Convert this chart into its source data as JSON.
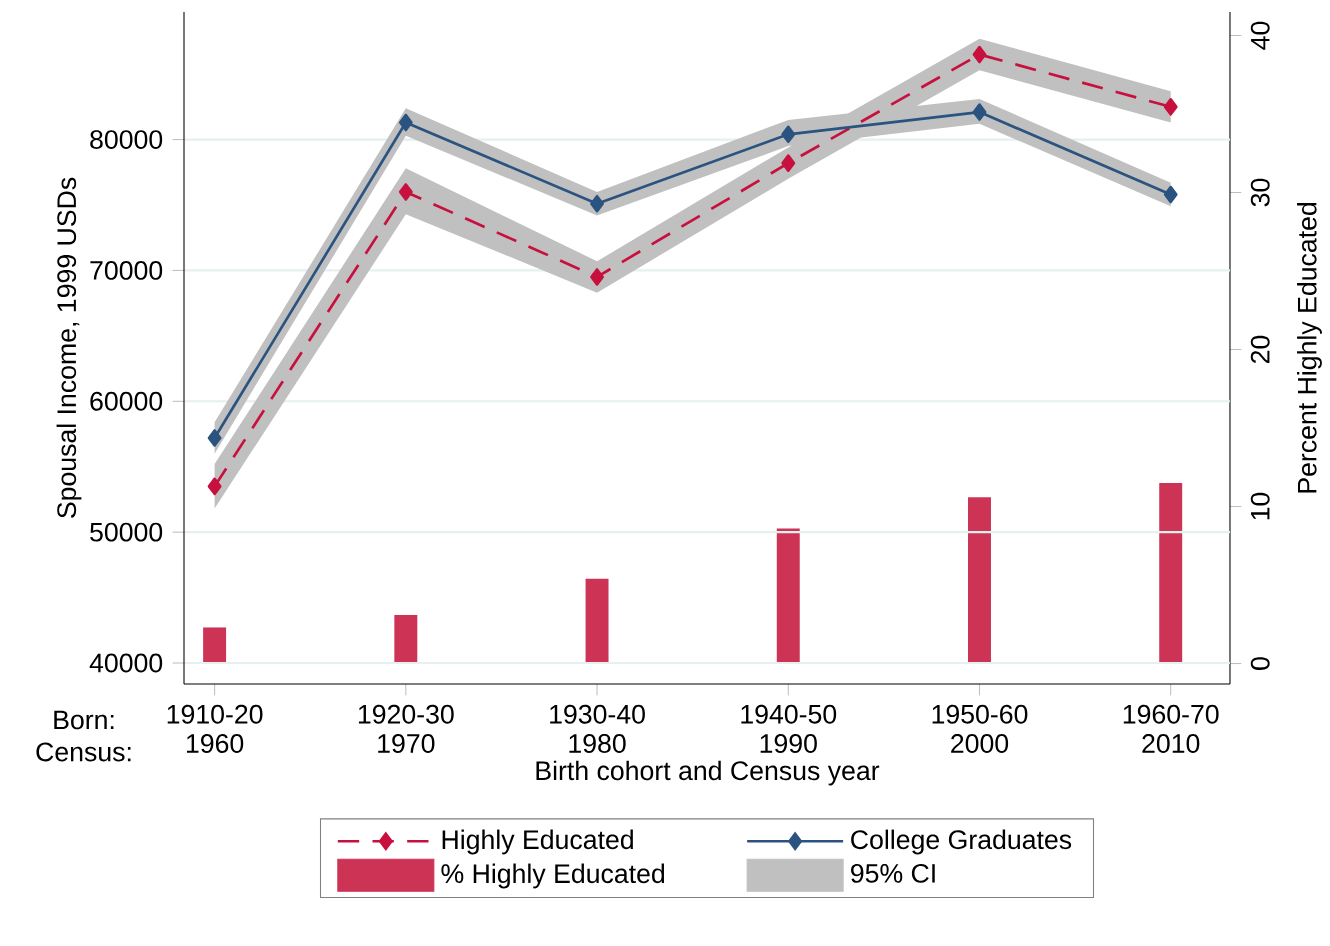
{
  "chart_data": {
    "type": "line",
    "xlabel": "Birth cohort and Census year",
    "ylabel": "Spousal Income, 1999 USDs",
    "y2label": "Percent Highly Educated",
    "categories": [
      "1910-20 1960",
      "1920-30 1970",
      "1930-40 1980",
      "1940-50 1990",
      "1950-60 2000",
      "1960-70 2010"
    ],
    "series": [
      {
        "name": "Highly Educated",
        "color": "#c8103e",
        "line_style": "dashed",
        "marker": "diamond",
        "values": [
          53500,
          76000,
          69500,
          78200,
          86500,
          82500
        ],
        "lower": [
          51800,
          74300,
          68300,
          77000,
          85300,
          81300
        ],
        "upper": [
          55200,
          77800,
          70700,
          79400,
          87700,
          83700
        ]
      },
      {
        "name": "College Graduates",
        "color": "#2b5380",
        "line_style": "solid",
        "marker": "diamond",
        "values": [
          57200,
          81300,
          75100,
          80400,
          82100,
          75800
        ],
        "lower": [
          56000,
          80300,
          74200,
          79500,
          81200,
          74900
        ],
        "upper": [
          58400,
          82400,
          76000,
          81500,
          83100,
          76700
        ]
      },
      {
        "name": "% Highly Educated",
        "type": "bar",
        "axis": "y2",
        "color": "#cc3355",
        "values": [
          2.3,
          3.1,
          5.4,
          8.6,
          10.6,
          11.5
        ]
      }
    ],
    "ylim": [
      38400,
      89750
    ],
    "yticks": [
      40000,
      50000,
      60000,
      70000,
      80000
    ],
    "y2lim": [
      -1.3,
      41.5
    ],
    "y2ticks": [
      0,
      10,
      20,
      30,
      40
    ],
    "grid": "y",
    "legend": "bottom",
    "annotations": [
      "Born:",
      "Census:",
      "95% CI"
    ]
  }
}
